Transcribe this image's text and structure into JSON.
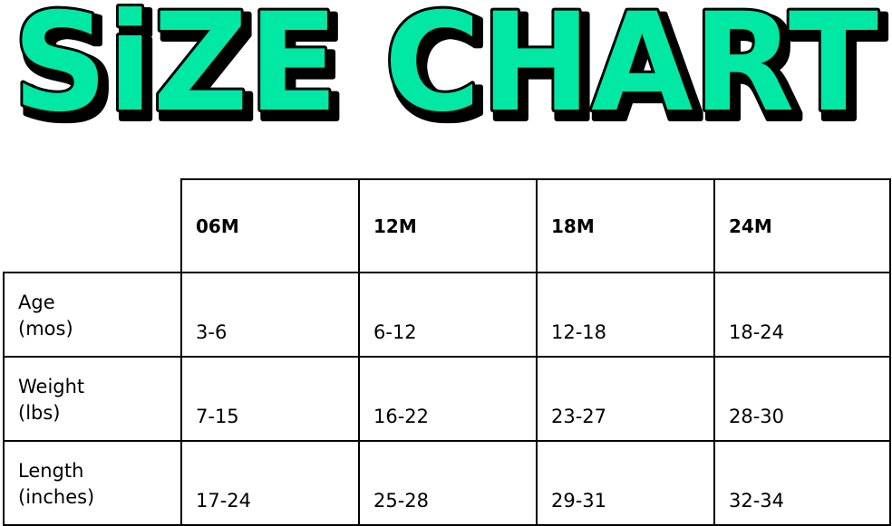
{
  "title": "SiZE CHART",
  "colors": {
    "title_fill": "#00E8A4",
    "title_outline": "#000000"
  },
  "table": {
    "columns": [
      "06M",
      "12M",
      "18M",
      "24M"
    ],
    "rows": [
      {
        "label_line1": "Age",
        "label_line2": "(mos)",
        "values": [
          "3-6",
          "6-12",
          "12-18",
          "18-24"
        ]
      },
      {
        "label_line1": "Weight",
        "label_line2": "(lbs)",
        "values": [
          "7-15",
          "16-22",
          "23-27",
          "28-30"
        ]
      },
      {
        "label_line1": "Length",
        "label_line2": "(inches)",
        "values": [
          "17-24",
          "25-28",
          "29-31",
          "32-34"
        ]
      }
    ]
  }
}
